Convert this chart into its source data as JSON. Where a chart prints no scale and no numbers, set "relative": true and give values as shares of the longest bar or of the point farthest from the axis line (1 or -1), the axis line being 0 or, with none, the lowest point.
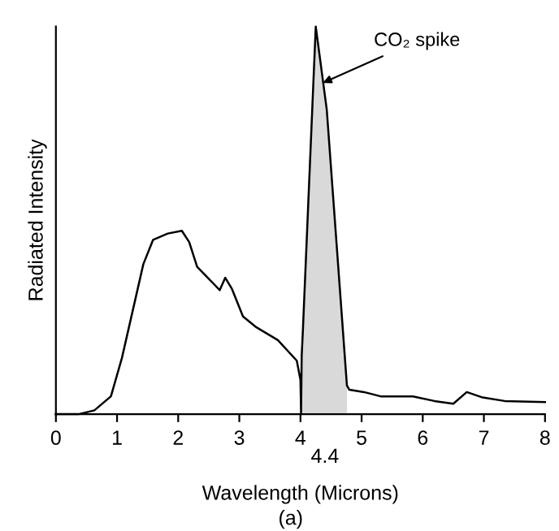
{
  "chart_data": {
    "type": "line",
    "relative": true,
    "xlabel": "Wavelength (Microns)",
    "ylabel": "Radiated Intensity",
    "xlim": [
      0,
      8
    ],
    "xticks": [
      0,
      1,
      2,
      3,
      4,
      5,
      6,
      7,
      8
    ],
    "series": [
      {
        "color": "#000000",
        "x": [
          0,
          0.37,
          0.63,
          0.9,
          1.08,
          1.43,
          1.59,
          1.83,
          2.06,
          2.18,
          2.31,
          2.57,
          2.68,
          2.77,
          2.88,
          3.06,
          3.28,
          3.63,
          3.94,
          4.0,
          4.01,
          4.02,
          4.04,
          4.25,
          4.43,
          4.76,
          4.8,
          5.04,
          5.31,
          5.84,
          6.19,
          6.5,
          6.72,
          6.98,
          7.34,
          8.0
        ],
        "values": [
          0,
          0,
          0.01,
          0.046,
          0.145,
          0.387,
          0.45,
          0.466,
          0.473,
          0.444,
          0.38,
          0.338,
          0.32,
          0.352,
          0.323,
          0.252,
          0.224,
          0.191,
          0.138,
          0.088,
          0,
          0.15,
          0.217,
          1,
          0.786,
          0.074,
          0.063,
          0.057,
          0.046,
          0.046,
          0.034,
          0.027,
          0.057,
          0.043,
          0.034,
          0.031
        ]
      },
      {
        "type": "area",
        "color": "#d9d9d9",
        "x": [
          4.02,
          4.04,
          4.25,
          4.43,
          4.76
        ],
        "values": [
          0.15,
          0.217,
          1,
          0.786,
          0.074
        ]
      }
    ],
    "annotations": [
      {
        "text": "CO₂ spike",
        "x": 4.3,
        "y": 0.85
      },
      {
        "text": "4.4",
        "x": 4.4,
        "y": 0
      },
      "(a)"
    ]
  }
}
